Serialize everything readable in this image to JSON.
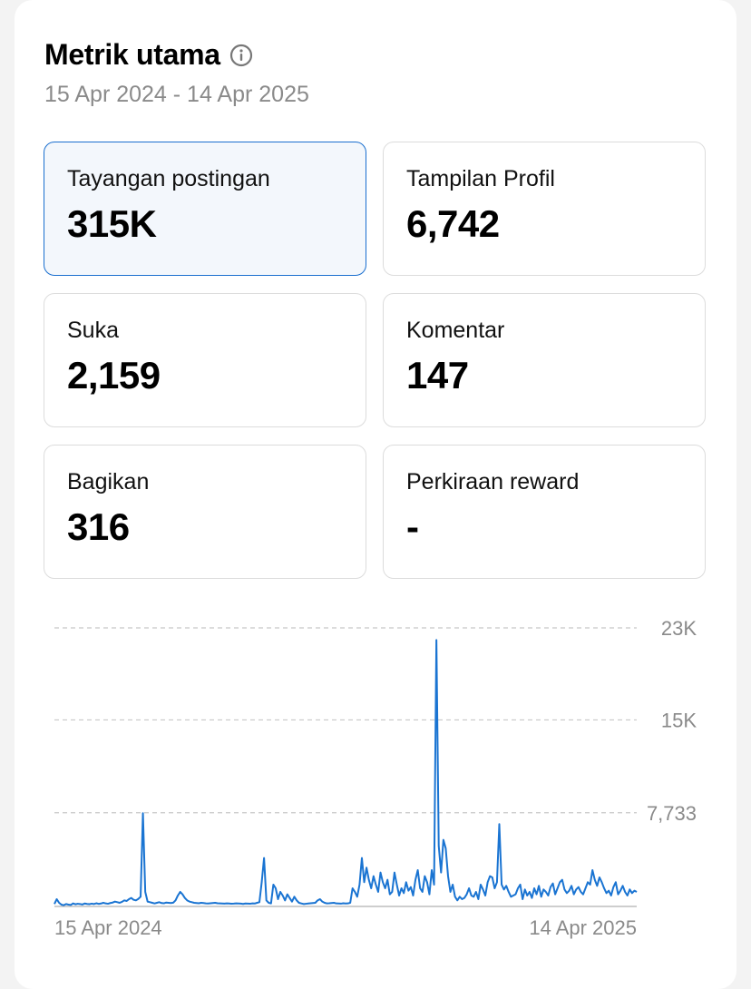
{
  "header": {
    "title": "Metrik utama",
    "date_range": "15 Apr 2024 - 14 Apr 2025"
  },
  "metrics": [
    {
      "label": "Tayangan postingan",
      "value": "315K",
      "selected": true
    },
    {
      "label": "Tampilan Profil",
      "value": "6,742",
      "selected": false
    },
    {
      "label": "Suka",
      "value": "2,159",
      "selected": false
    },
    {
      "label": "Komentar",
      "value": "147",
      "selected": false
    },
    {
      "label": "Bagikan",
      "value": "316",
      "selected": false
    },
    {
      "label": "Perkiraan reward",
      "value": "-",
      "selected": false
    }
  ],
  "colors": {
    "accent": "#1a6fcf",
    "line": "#1a74d2",
    "muted_text": "#8a8a8a",
    "grid": "#c8c8c8"
  },
  "chart_data": {
    "type": "line",
    "x_start": "15 Apr 2024",
    "x_end": "14 Apr 2025",
    "x_tick_labels": [
      "15 Apr 2024",
      "14 Apr 2025"
    ],
    "y_tick_labels": [
      "23K",
      "15K",
      "7,733"
    ],
    "y_ticks": [
      23000,
      15400,
      7733
    ],
    "ylim": [
      0,
      23000
    ],
    "grid": true,
    "series": [
      {
        "values": [
          200,
          600,
          300,
          150,
          100,
          200,
          150,
          120,
          250,
          180,
          220,
          200,
          160,
          240,
          210,
          190,
          230,
          200,
          260,
          210,
          240,
          300,
          250,
          220,
          280,
          320,
          400,
          350,
          300,
          380,
          500,
          450,
          600,
          700,
          550,
          500,
          620,
          800,
          7700,
          1200,
          400,
          350,
          300,
          250,
          300,
          350,
          280,
          260,
          320,
          300,
          280,
          310,
          500,
          900,
          1200,
          1000,
          700,
          500,
          400,
          350,
          300,
          280,
          260,
          300,
          280,
          250,
          240,
          260,
          280,
          300,
          260,
          250,
          240,
          230,
          250,
          240,
          220,
          230,
          250,
          240,
          230,
          210,
          240,
          230,
          220,
          250,
          240,
          300,
          350,
          2000,
          4000,
          500,
          300,
          250,
          1800,
          1500,
          600,
          1200,
          900,
          500,
          1000,
          700,
          400,
          800,
          500,
          300,
          250,
          200,
          220,
          240,
          260,
          280,
          300,
          500,
          600,
          400,
          300,
          250,
          260,
          280,
          300,
          250,
          240,
          230,
          260,
          240,
          250,
          300,
          1500,
          1200,
          800,
          1800,
          4000,
          2000,
          3200,
          2200,
          1500,
          2500,
          1800,
          1200,
          2800,
          2000,
          1500,
          2200,
          1000,
          1200,
          2800,
          1800,
          900,
          1500,
          1100,
          2000,
          1300,
          1600,
          900,
          2200,
          3000,
          1500,
          1200,
          2500,
          2000,
          1000,
          3000,
          1800,
          22000,
          5000,
          2800,
          5500,
          4800,
          2500,
          1200,
          1800,
          800,
          500,
          800,
          600,
          700,
          1000,
          1500,
          900,
          800,
          1200,
          600,
          1800,
          1400,
          900,
          2000,
          2500,
          2400,
          1500,
          2000,
          6800,
          1800,
          1400,
          1700,
          1200,
          800,
          900,
          1000,
          1500,
          1800,
          600,
          1400,
          900,
          1200,
          700,
          1500,
          1000,
          1700,
          800,
          1400,
          1200,
          900,
          1600,
          1900,
          1000,
          1500,
          2000,
          2200,
          1400,
          1100,
          1300,
          1700,
          1000,
          1400,
          1600,
          1200,
          1000,
          1500,
          2000,
          1800,
          3000,
          2200,
          1700,
          2400,
          2000,
          1500,
          1100,
          1300,
          900,
          1600,
          2000,
          1000,
          1300,
          1700,
          1200,
          900,
          1400,
          1100,
          1300,
          1200
        ]
      }
    ]
  }
}
